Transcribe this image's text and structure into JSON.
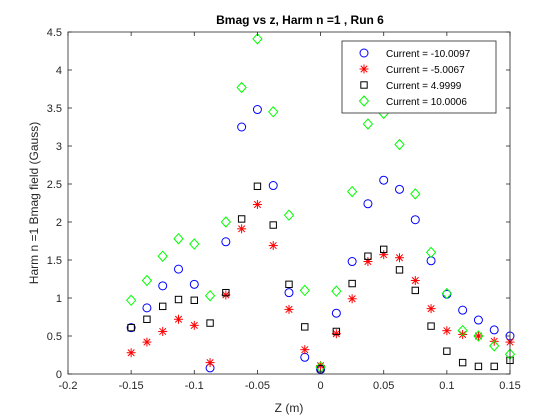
{
  "chart_data": {
    "type": "scatter",
    "title": "Bmag vs z, Harm n =1 , Run 6",
    "xlabel": "Z (m)",
    "ylabel": "Harm n =1 Bmag field (Gauss)",
    "xlim": [
      -0.2,
      0.15
    ],
    "ylim": [
      0,
      4.5
    ],
    "xticks": [
      -0.2,
      -0.15,
      -0.1,
      -0.05,
      0,
      0.05,
      0.1,
      0.15
    ],
    "xtick_labels": [
      "-0.2",
      "-0.15",
      "-0.1",
      "-0.05",
      "0",
      "0.05",
      "0.1",
      "0.15"
    ],
    "yticks": [
      0,
      0.5,
      1,
      1.5,
      2,
      2.5,
      3,
      3.5,
      4,
      4.5
    ],
    "ytick_labels": [
      "0",
      "0.5",
      "1",
      "1.5",
      "2",
      "2.5",
      "3",
      "3.5",
      "4",
      "4.5"
    ],
    "grid": false,
    "legend_position": "top-right",
    "series": [
      {
        "name": "Current = -10.0097",
        "marker": "circle",
        "color": "#0000ff",
        "x": [
          -0.15,
          -0.1375,
          -0.125,
          -0.1125,
          -0.1,
          -0.0875,
          -0.075,
          -0.0625,
          -0.05,
          -0.0375,
          -0.025,
          -0.0125,
          0,
          0.0125,
          0.025,
          0.0375,
          0.05,
          0.0625,
          0.075,
          0.0875,
          0.1,
          0.1125,
          0.125,
          0.1375,
          0.15
        ],
        "y": [
          0.61,
          0.87,
          1.16,
          1.38,
          1.18,
          0.08,
          1.74,
          3.25,
          3.48,
          2.48,
          1.07,
          0.22,
          0.06,
          0.8,
          1.48,
          2.24,
          2.55,
          2.43,
          2.03,
          1.49,
          1.05,
          0.84,
          0.71,
          0.58,
          0.5
        ]
      },
      {
        "name": "Current = -5.0067",
        "marker": "asterisk",
        "color": "#ff0000",
        "x": [
          -0.15,
          -0.1375,
          -0.125,
          -0.1125,
          -0.1,
          -0.0875,
          -0.075,
          -0.0625,
          -0.05,
          -0.0375,
          -0.025,
          -0.0125,
          0,
          0.0125,
          0.025,
          0.0375,
          0.05,
          0.0625,
          0.075,
          0.0875,
          0.1,
          0.1125,
          0.125,
          0.1375,
          0.15
        ],
        "y": [
          0.28,
          0.42,
          0.56,
          0.72,
          0.64,
          0.15,
          1.04,
          1.91,
          2.23,
          1.69,
          0.85,
          0.32,
          0.11,
          0.53,
          0.99,
          1.48,
          1.57,
          1.53,
          1.23,
          0.86,
          0.57,
          0.52,
          0.5,
          0.43,
          0.42
        ]
      },
      {
        "name": "Current = 4.9999",
        "marker": "square",
        "color": "#000000",
        "x": [
          -0.15,
          -0.1375,
          -0.125,
          -0.1125,
          -0.1,
          -0.0875,
          -0.075,
          -0.0625,
          -0.05,
          -0.0375,
          -0.025,
          -0.0125,
          0,
          0.0125,
          0.025,
          0.0375,
          0.05,
          0.0625,
          0.075,
          0.0875,
          0.1,
          0.1125,
          0.125,
          0.1375,
          0.15
        ],
        "y": [
          0.61,
          0.72,
          0.89,
          0.98,
          0.97,
          0.67,
          1.07,
          2.04,
          2.47,
          1.96,
          1.18,
          0.62,
          0.07,
          0.56,
          1.19,
          1.55,
          1.64,
          1.37,
          1.1,
          0.63,
          0.3,
          0.15,
          0.1,
          0.1,
          0.18
        ]
      },
      {
        "name": "Current = 10.0006",
        "marker": "diamond",
        "color": "#00ff00",
        "x": [
          -0.15,
          -0.1375,
          -0.125,
          -0.1125,
          -0.1,
          -0.0875,
          -0.075,
          -0.0625,
          -0.05,
          -0.0375,
          -0.025,
          -0.0125,
          0,
          0.0125,
          0.025,
          0.0375,
          0.05,
          0.0625,
          0.075,
          0.0875,
          0.1,
          0.1125,
          0.125,
          0.1375,
          0.15
        ],
        "y": [
          0.97,
          1.23,
          1.55,
          1.78,
          1.71,
          1.03,
          2.0,
          3.77,
          4.41,
          3.45,
          2.09,
          1.1,
          0.09,
          1.09,
          2.4,
          3.29,
          3.43,
          3.02,
          2.37,
          1.6,
          1.06,
          0.57,
          0.5,
          0.37,
          0.26
        ]
      }
    ]
  }
}
